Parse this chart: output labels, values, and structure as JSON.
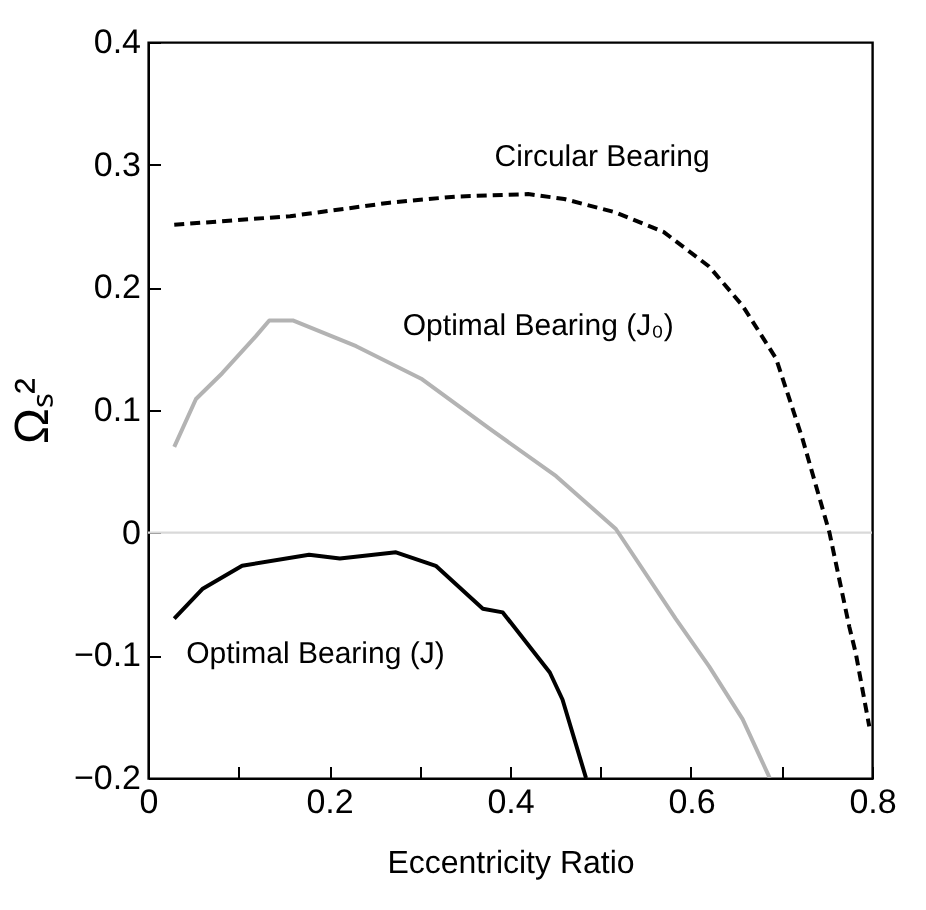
{
  "chart_data": {
    "type": "line",
    "xlabel": "Eccentricity Ratio",
    "ylabel": "Ωₛ²",
    "xlim": [
      0,
      0.8
    ],
    "ylim": [
      -0.2,
      0.4
    ],
    "xticks": [
      0,
      {
        "value": 0.1,
        "label": null
      },
      0.2,
      {
        "value": 0.3,
        "label": null
      },
      0.4,
      {
        "value": 0.5,
        "label": null
      },
      0.6,
      {
        "value": 0.7,
        "label": null
      },
      0.8
    ],
    "yticks": [
      -0.2,
      -0.1,
      0,
      0.1,
      0.2,
      0.3,
      0.4
    ],
    "ref_lines": [
      {
        "axis": "y",
        "value": 0,
        "color": "#d9d9d9"
      }
    ],
    "series": [
      {
        "name": "Circular Bearing",
        "color": "#000000",
        "line_style": "dashed",
        "x": [
          0.029,
          0.157,
          0.267,
          0.34,
          0.42,
          0.46,
          0.517,
          0.57,
          0.62,
          0.657,
          0.694,
          0.723,
          0.753,
          0.775,
          0.782,
          0.797
        ],
        "values": [
          0.251,
          0.258,
          0.269,
          0.274,
          0.276,
          0.272,
          0.261,
          0.245,
          0.217,
          0.185,
          0.142,
          0.077,
          0.0,
          -0.077,
          -0.098,
          -0.158
        ]
      },
      {
        "name": "Optimal Bearing (J₀)",
        "color": "#b3b3b3",
        "line_style": "solid",
        "x": [
          0.029,
          0.053,
          0.082,
          0.119,
          0.134,
          0.16,
          0.23,
          0.303,
          0.377,
          0.451,
          0.517,
          0.583,
          0.62,
          0.657,
          0.687
        ],
        "values": [
          0.07,
          0.109,
          0.13,
          0.16,
          0.173,
          0.173,
          0.152,
          0.125,
          0.085,
          0.046,
          0.003,
          -0.07,
          -0.109,
          -0.152,
          -0.2
        ]
      },
      {
        "name": "Optimal Bearing (J)",
        "color": "#000000",
        "line_style": "solid",
        "x": [
          0.029,
          0.06,
          0.104,
          0.178,
          0.212,
          0.274,
          0.318,
          0.37,
          0.392,
          0.444,
          0.458,
          0.484
        ],
        "values": [
          -0.07,
          -0.046,
          -0.027,
          -0.018,
          -0.021,
          -0.016,
          -0.027,
          -0.062,
          -0.065,
          -0.114,
          -0.136,
          -0.2
        ]
      }
    ]
  }
}
